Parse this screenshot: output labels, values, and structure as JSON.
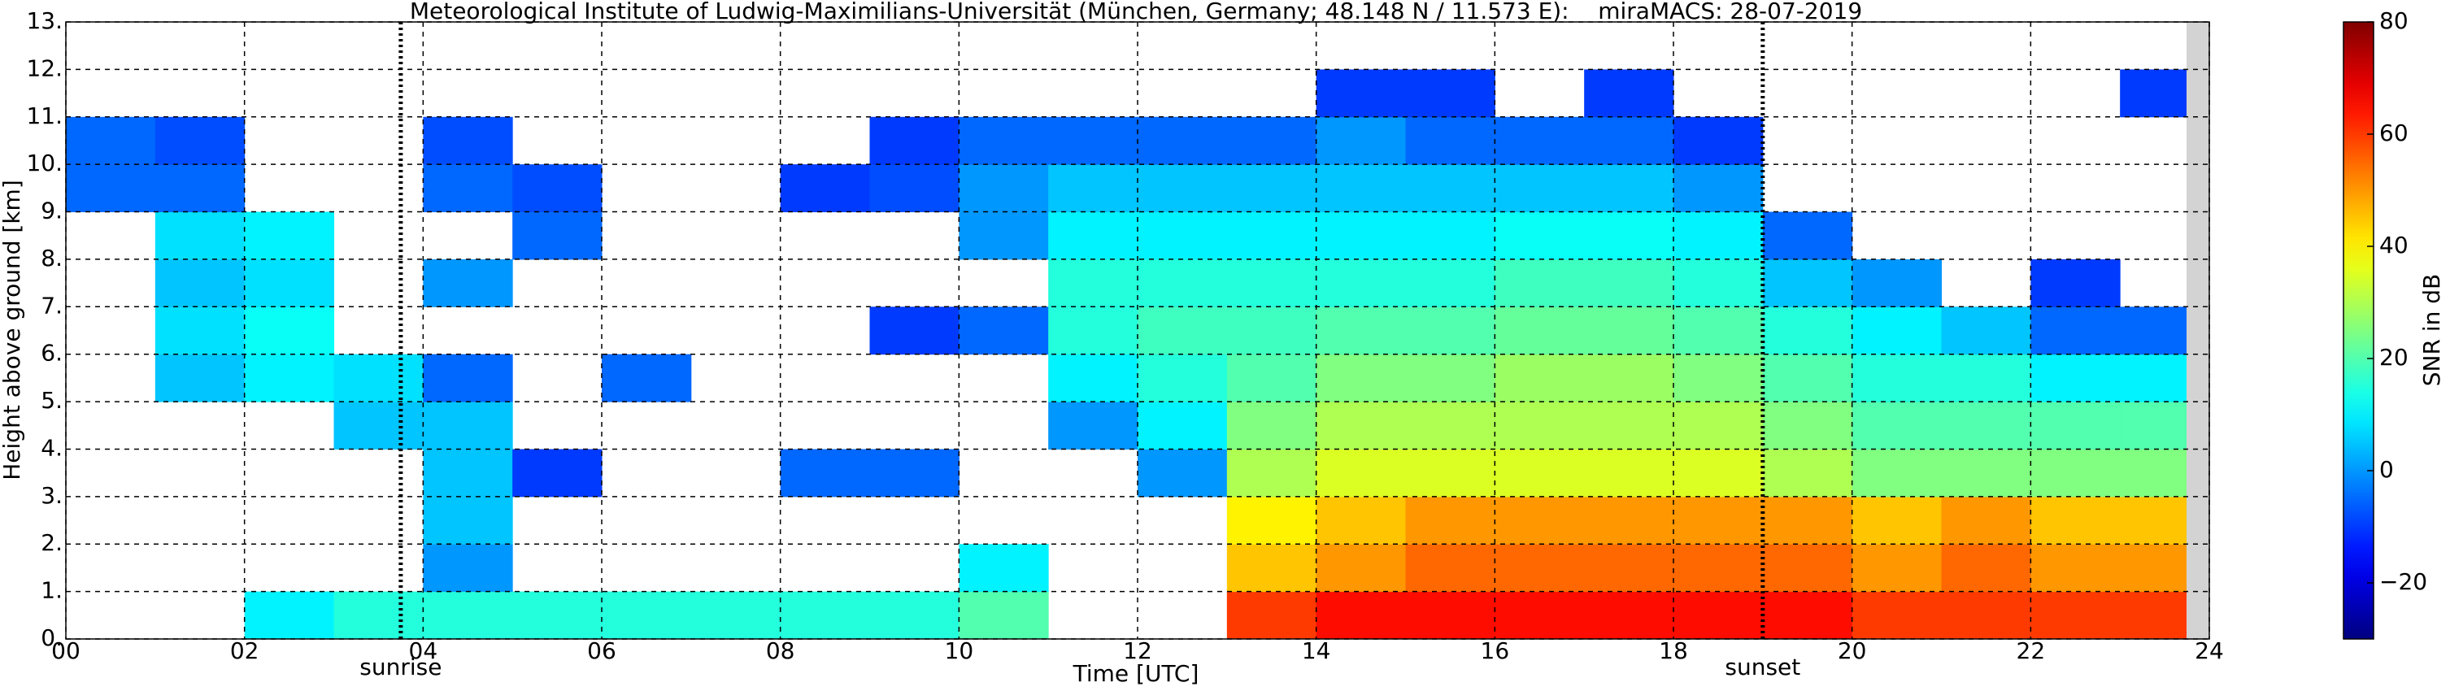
{
  "chart_data": {
    "type": "heatmap",
    "title": "Meteorological Institute of Ludwig-Maximilians-Universität (München, Germany; 48.148 N / 11.573 E):    miraMACS: 28-07-2019",
    "x_label": "Time [UTC]",
    "y_label": "Height above ground [km]",
    "colormap": "jet",
    "grid": true,
    "xlim": [
      0,
      24
    ],
    "ylim": [
      0,
      13
    ],
    "xticks": [
      {
        "value": 0,
        "label": "00"
      },
      {
        "value": 2,
        "label": "02"
      },
      {
        "value": 4,
        "label": "04"
      },
      {
        "value": 6,
        "label": "06"
      },
      {
        "value": 8,
        "label": "08"
      },
      {
        "value": 10,
        "label": "10"
      },
      {
        "value": 12,
        "label": "12"
      },
      {
        "value": 14,
        "label": "14"
      },
      {
        "value": 16,
        "label": "16"
      },
      {
        "value": 18,
        "label": "18"
      },
      {
        "value": 20,
        "label": "20"
      },
      {
        "value": 22,
        "label": "22"
      },
      {
        "value": 24,
        "label": "24"
      }
    ],
    "yticks": [
      {
        "value": 0,
        "label": "0."
      },
      {
        "value": 1,
        "label": "1."
      },
      {
        "value": 2,
        "label": "2."
      },
      {
        "value": 3,
        "label": "3."
      },
      {
        "value": 4,
        "label": "4."
      },
      {
        "value": 5,
        "label": "5."
      },
      {
        "value": 6,
        "label": "6."
      },
      {
        "value": 7,
        "label": "7."
      },
      {
        "value": 8,
        "label": "8."
      },
      {
        "value": 9,
        "label": "9."
      },
      {
        "value": 10,
        "label": "10."
      },
      {
        "value": 11,
        "label": "11."
      },
      {
        "value": 12,
        "label": "12."
      },
      {
        "value": 13,
        "label": "13."
      }
    ],
    "x_edges": [
      0,
      1,
      2,
      3,
      4,
      5,
      6,
      7,
      8,
      9,
      10,
      11,
      12,
      13,
      14,
      15,
      16,
      17,
      18,
      19,
      20,
      21,
      22,
      23,
      24
    ],
    "y_edges": [
      0,
      1,
      2,
      3,
      4,
      5,
      6,
      7,
      8,
      9,
      10,
      11,
      12,
      13
    ],
    "values": [
      [
        null,
        null,
        10,
        15,
        15,
        15,
        15,
        15,
        15,
        15,
        20,
        null,
        null,
        60,
        65,
        65,
        65,
        65,
        65,
        65,
        60,
        60,
        60,
        60
      ],
      [
        null,
        null,
        null,
        null,
        0,
        null,
        null,
        null,
        null,
        null,
        10,
        null,
        null,
        45,
        50,
        55,
        55,
        55,
        55,
        55,
        50,
        55,
        50,
        50
      ],
      [
        null,
        null,
        null,
        null,
        5,
        null,
        null,
        null,
        null,
        null,
        null,
        null,
        null,
        40,
        45,
        50,
        50,
        50,
        50,
        50,
        45,
        50,
        45,
        45
      ],
      [
        null,
        null,
        null,
        null,
        5,
        -10,
        null,
        null,
        -5,
        -5,
        null,
        null,
        0,
        30,
        35,
        35,
        35,
        35,
        35,
        30,
        25,
        25,
        25,
        25
      ],
      [
        null,
        null,
        null,
        5,
        5,
        null,
        null,
        null,
        null,
        null,
        null,
        0,
        10,
        25,
        30,
        30,
        30,
        30,
        30,
        25,
        20,
        20,
        20,
        20
      ],
      [
        null,
        5,
        10,
        8,
        -5,
        null,
        -5,
        null,
        null,
        null,
        null,
        10,
        15,
        20,
        25,
        25,
        28,
        28,
        25,
        20,
        15,
        15,
        10,
        10
      ],
      [
        null,
        8,
        12,
        null,
        null,
        null,
        null,
        null,
        null,
        -10,
        -5,
        15,
        18,
        18,
        20,
        20,
        22,
        22,
        20,
        15,
        10,
        5,
        -5,
        -5
      ],
      [
        null,
        5,
        8,
        null,
        0,
        null,
        null,
        null,
        null,
        null,
        null,
        15,
        15,
        15,
        15,
        15,
        18,
        18,
        15,
        5,
        0,
        null,
        -10,
        null
      ],
      [
        null,
        8,
        10,
        null,
        null,
        -5,
        null,
        null,
        null,
        null,
        0,
        10,
        10,
        10,
        10,
        10,
        12,
        12,
        10,
        -5,
        null,
        null,
        null,
        null
      ],
      [
        -5,
        -5,
        null,
        null,
        -5,
        -8,
        null,
        null,
        -10,
        -8,
        0,
        5,
        5,
        5,
        5,
        5,
        5,
        5,
        0,
        null,
        null,
        null,
        null,
        null
      ],
      [
        -5,
        -8,
        null,
        null,
        -8,
        null,
        null,
        null,
        null,
        -10,
        -5,
        -5,
        -5,
        -5,
        0,
        -5,
        -5,
        -5,
        -10,
        null,
        null,
        null,
        null,
        null
      ],
      [
        null,
        null,
        null,
        null,
        null,
        null,
        null,
        null,
        null,
        null,
        null,
        null,
        null,
        null,
        -10,
        -10,
        null,
        -10,
        null,
        null,
        null,
        null,
        null,
        -10
      ],
      [
        null,
        null,
        null,
        null,
        null,
        null,
        null,
        null,
        null,
        null,
        null,
        null,
        null,
        null,
        null,
        null,
        null,
        null,
        null,
        null,
        null,
        null,
        null,
        null
      ]
    ],
    "annotations": [
      {
        "text": "sunrise",
        "x": 3.75
      },
      {
        "text": "sunset",
        "x": 19.0
      }
    ],
    "colorbar": {
      "label": "SNR in dB",
      "lim": [
        -30,
        80
      ],
      "ticks": [
        {
          "value": -20,
          "label": "−20"
        },
        0,
        20,
        40,
        60,
        80
      ]
    }
  }
}
